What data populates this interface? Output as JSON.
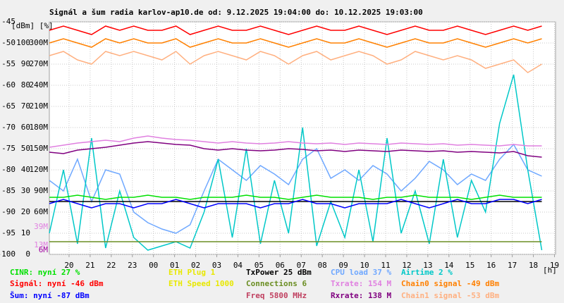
{
  "chart_data": {
    "type": "line",
    "title": "Signál a šum radia karlov-ap10.de od: 9.12.2025 19:04:00 do: 10.12.2025 19:03:00",
    "axis_header": "[dBm] [%]",
    "x_unit": "[h]",
    "xlim": [
      0,
      1439
    ],
    "xticks": [
      {
        "value": 56,
        "label": "20"
      },
      {
        "value": 116,
        "label": "21"
      },
      {
        "value": 176,
        "label": "22"
      },
      {
        "value": 236,
        "label": "23"
      },
      {
        "value": 296,
        "label": "00"
      },
      {
        "value": 356,
        "label": "01"
      },
      {
        "value": 416,
        "label": "02"
      },
      {
        "value": 476,
        "label": "03"
      },
      {
        "value": 536,
        "label": "04"
      },
      {
        "value": 596,
        "label": "05"
      },
      {
        "value": 656,
        "label": "06"
      },
      {
        "value": 716,
        "label": "07"
      },
      {
        "value": 776,
        "label": "08"
      },
      {
        "value": 836,
        "label": "09"
      },
      {
        "value": 896,
        "label": "10"
      },
      {
        "value": 956,
        "label": "11"
      },
      {
        "value": 1016,
        "label": "12"
      },
      {
        "value": 1076,
        "label": "13"
      },
      {
        "value": 1136,
        "label": "14"
      },
      {
        "value": 1196,
        "label": "15"
      },
      {
        "value": 1256,
        "label": "16"
      },
      {
        "value": 1316,
        "label": "17"
      },
      {
        "value": 1376,
        "label": "18"
      },
      {
        "value": 1436,
        "label": "19"
      }
    ],
    "ylim": [
      -100,
      -45
    ],
    "yticks": [
      -45,
      -50,
      -55,
      -60,
      -65,
      -70,
      -75,
      -80,
      -85,
      -90,
      -95,
      -100
    ],
    "y2lim": [
      0,
      110
    ],
    "y2ticks": [
      100,
      90,
      80,
      70,
      60,
      50,
      40,
      30,
      20,
      10,
      0
    ],
    "y3lim": [
      0,
      330
    ],
    "y3ticks": [
      {
        "value": 300,
        "label": "300M"
      },
      {
        "value": 270,
        "label": "270M"
      },
      {
        "value": 240,
        "label": "240M"
      },
      {
        "value": 210,
        "label": "210M"
      },
      {
        "value": 180,
        "label": "180M"
      },
      {
        "value": 150,
        "label": "150M"
      },
      {
        "value": 120,
        "label": "120M"
      },
      {
        "value": 90,
        "label": "90M"
      },
      {
        "value": 60,
        "label": "60M"
      }
    ],
    "rate_markers": [
      {
        "value": 39,
        "label": "39M",
        "color": "#e080e0"
      },
      {
        "value": 13,
        "label": "13M",
        "color": "#e080e0"
      },
      {
        "value": 6,
        "label": "6M",
        "color": "#a000a0"
      }
    ],
    "grid": true,
    "x": [
      0,
      40,
      80,
      120,
      160,
      200,
      240,
      280,
      320,
      360,
      400,
      440,
      480,
      520,
      560,
      600,
      640,
      680,
      720,
      760,
      800,
      840,
      880,
      920,
      960,
      1000,
      1040,
      1080,
      1120,
      1160,
      1200,
      1240,
      1280,
      1320,
      1360,
      1400
    ],
    "series": [
      {
        "name": "CINR: nyní 27 %",
        "color": "#00e000",
        "axis": "y2",
        "values": [
          27,
          27,
          28,
          27,
          26,
          27,
          27,
          28,
          27,
          27,
          26,
          27,
          27,
          27,
          28,
          27,
          27,
          26,
          27,
          28,
          27,
          27,
          27,
          26,
          27,
          27,
          28,
          27,
          27,
          27,
          26,
          27,
          28,
          27,
          27,
          27
        ]
      },
      {
        "name": "Signál: nyní -46 dBm",
        "color": "#ff0000",
        "axis": "y",
        "values": [
          -47,
          -46,
          -47,
          -48,
          -46,
          -47,
          -46,
          -47,
          -47,
          -46,
          -48,
          -47,
          -46,
          -47,
          -47,
          -46,
          -47,
          -48,
          -47,
          -46,
          -47,
          -47,
          -46,
          -47,
          -48,
          -47,
          -46,
          -47,
          -47,
          -46,
          -47,
          -48,
          -47,
          -46,
          -47,
          -46
        ]
      },
      {
        "name": "Šum: nyní -87 dBm",
        "color": "#0000ff",
        "axis": "y",
        "values": [
          -88,
          -87,
          -88,
          -89,
          -88,
          -88,
          -89,
          -88,
          -88,
          -87,
          -88,
          -89,
          -88,
          -88,
          -88,
          -89,
          -88,
          -88,
          -87,
          -88,
          -88,
          -89,
          -88,
          -88,
          -88,
          -87,
          -88,
          -89,
          -88,
          -87,
          -88,
          -88,
          -87,
          -87,
          -88,
          -87
        ]
      },
      {
        "name": "ETH Plug 1",
        "color": "#e8e800"
      },
      {
        "name": "ETH Speed 1000",
        "color": "#e8e800"
      },
      {
        "name": "TxPower 25 dBm",
        "color": "#000000",
        "axis": "y2",
        "values": [
          25,
          25,
          25,
          25,
          25,
          25,
          25,
          25,
          25,
          25,
          25,
          25,
          25,
          25,
          25,
          25,
          25,
          25,
          25,
          25,
          25,
          25,
          25,
          25,
          25,
          25,
          25,
          25,
          25,
          25,
          25,
          25,
          25,
          25,
          25,
          25
        ]
      },
      {
        "name": "Connections 6",
        "color": "#6b8e23",
        "axis": "y2",
        "values": [
          6,
          6,
          6,
          6,
          6,
          6,
          6,
          6,
          6,
          6,
          6,
          6,
          6,
          6,
          6,
          6,
          6,
          6,
          6,
          6,
          6,
          6,
          6,
          6,
          6,
          6,
          6,
          6,
          6,
          6,
          6,
          6,
          6,
          6,
          6,
          6
        ]
      },
      {
        "name": "Freq 5800 MHz",
        "color": "#c04060"
      },
      {
        "name": "CPU load 37 %",
        "color": "#6fa8ff",
        "axis": "y2",
        "values": [
          35,
          30,
          45,
          25,
          40,
          38,
          20,
          15,
          12,
          10,
          14,
          30,
          45,
          40,
          35,
          42,
          38,
          33,
          45,
          50,
          36,
          40,
          35,
          42,
          38,
          30,
          36,
          44,
          40,
          33,
          38,
          35,
          45,
          52,
          40,
          37
        ]
      },
      {
        "name": "Txrate: 154 M",
        "color": "#e080e0",
        "axis": "y3",
        "values": [
          152,
          155,
          158,
          160,
          162,
          160,
          165,
          168,
          165,
          163,
          162,
          160,
          158,
          160,
          158,
          157,
          158,
          160,
          158,
          157,
          158,
          156,
          158,
          157,
          156,
          158,
          157,
          156,
          157,
          155,
          156,
          155,
          154,
          156,
          154,
          154
        ]
      },
      {
        "name": "Rxrate: 138 M",
        "color": "#800080",
        "axis": "y3",
        "values": [
          145,
          143,
          148,
          150,
          152,
          155,
          158,
          160,
          158,
          156,
          155,
          150,
          148,
          150,
          148,
          147,
          148,
          150,
          149,
          147,
          148,
          146,
          148,
          147,
          146,
          148,
          147,
          146,
          147,
          145,
          146,
          145,
          144,
          146,
          140,
          138
        ]
      },
      {
        "name": "Airtime 2 %",
        "color": "#00c8c8",
        "axis": "y2",
        "values": [
          10,
          40,
          5,
          55,
          3,
          30,
          8,
          2,
          4,
          6,
          3,
          20,
          45,
          8,
          50,
          5,
          35,
          10,
          60,
          4,
          25,
          8,
          40,
          6,
          55,
          10,
          30,
          5,
          45,
          8,
          35,
          20,
          62,
          85,
          40,
          2
        ]
      },
      {
        "name": "Chain0 signal -49 dBm",
        "color": "#ff8000",
        "axis": "y",
        "values": [
          -50,
          -49,
          -50,
          -51,
          -49,
          -50,
          -49,
          -50,
          -50,
          -49,
          -51,
          -50,
          -49,
          -50,
          -50,
          -49,
          -50,
          -51,
          -50,
          -49,
          -50,
          -50,
          -49,
          -50,
          -51,
          -50,
          -49,
          -50,
          -50,
          -49,
          -50,
          -51,
          -50,
          -49,
          -50,
          -49
        ]
      },
      {
        "name": "Chain1 signal -53 dBm",
        "color": "#ffb080",
        "axis": "y",
        "values": [
          -53,
          -52,
          -54,
          -55,
          -52,
          -53,
          -52,
          -53,
          -54,
          -52,
          -55,
          -53,
          -52,
          -53,
          -54,
          -52,
          -53,
          -55,
          -53,
          -52,
          -54,
          -53,
          -52,
          -53,
          -55,
          -54,
          -52,
          -53,
          -54,
          -53,
          -54,
          -56,
          -55,
          -54,
          -57,
          -55
        ]
      }
    ]
  }
}
